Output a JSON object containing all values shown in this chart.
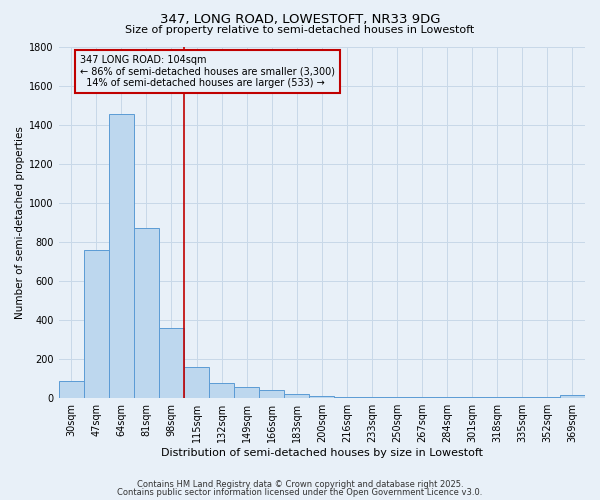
{
  "title1": "347, LONG ROAD, LOWESTOFT, NR33 9DG",
  "title2": "Size of property relative to semi-detached houses in Lowestoft",
  "xlabel": "Distribution of semi-detached houses by size in Lowestoft",
  "ylabel": "Number of semi-detached properties",
  "categories": [
    "30sqm",
    "47sqm",
    "64sqm",
    "81sqm",
    "98sqm",
    "115sqm",
    "132sqm",
    "149sqm",
    "166sqm",
    "183sqm",
    "200sqm",
    "216sqm",
    "233sqm",
    "250sqm",
    "267sqm",
    "284sqm",
    "301sqm",
    "318sqm",
    "335sqm",
    "352sqm",
    "369sqm"
  ],
  "values": [
    85,
    755,
    1455,
    870,
    355,
    155,
    75,
    55,
    40,
    20,
    10,
    5,
    5,
    5,
    5,
    5,
    5,
    3,
    3,
    3,
    15
  ],
  "bar_color": "#BDD7EE",
  "bar_edge_color": "#5B9BD5",
  "vline_x": 4.5,
  "vline_color": "#C00000",
  "annotation_line1": "347 LONG ROAD: 104sqm",
  "annotation_line2": "← 86% of semi-detached houses are smaller (3,300)",
  "annotation_line3": "14% of semi-detached houses are larger (533) →",
  "annotation_box_color": "#C00000",
  "footer1": "Contains HM Land Registry data © Crown copyright and database right 2025.",
  "footer2": "Contains public sector information licensed under the Open Government Licence v3.0.",
  "bg_color": "#E8F0F8",
  "ylim": [
    0,
    1800
  ],
  "yticks": [
    0,
    200,
    400,
    600,
    800,
    1000,
    1200,
    1400,
    1600,
    1800
  ],
  "grid_color": "#C8D8E8",
  "title1_fontsize": 9.5,
  "title2_fontsize": 8.0,
  "xlabel_fontsize": 8.0,
  "ylabel_fontsize": 7.5,
  "tick_fontsize": 7.0,
  "footer_fontsize": 6.0
}
